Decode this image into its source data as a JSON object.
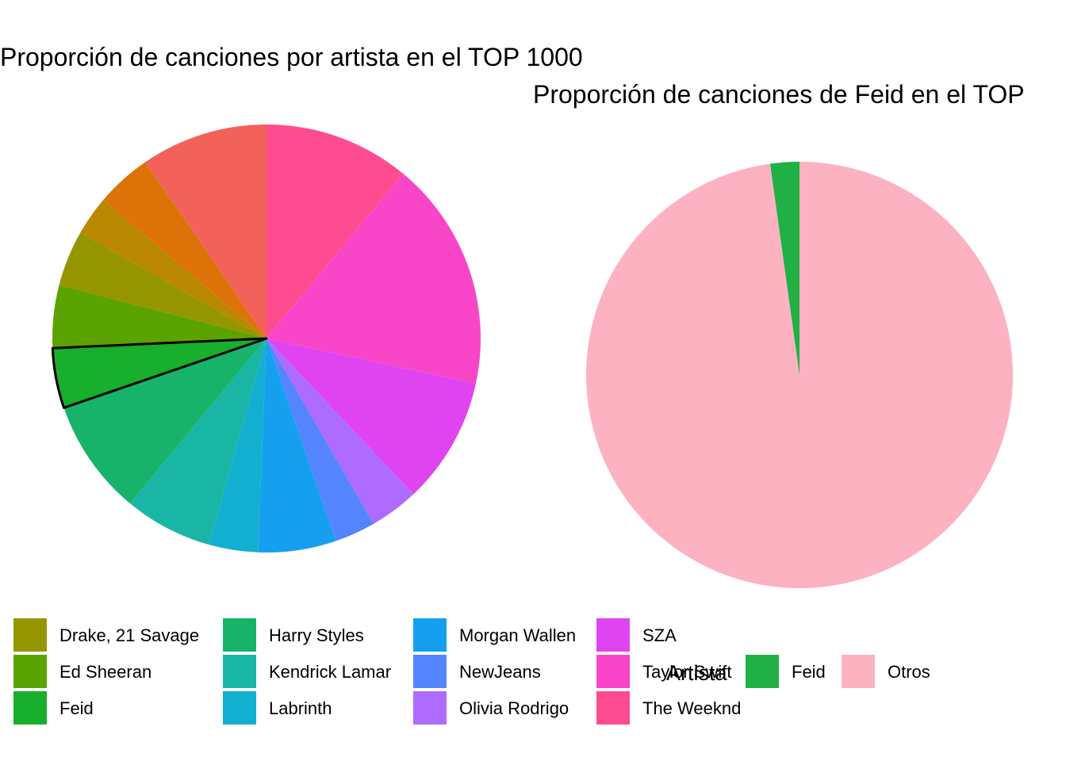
{
  "chart_data": [
    {
      "type": "pie",
      "title": "Proporción de canciones por artista en el TOP 1000",
      "legend_position": "bottom",
      "highlighted": "Feid",
      "slices": [
        {
          "label": "The Weeknd",
          "value": 10.7,
          "color": "#FF4C91"
        },
        {
          "label": "Taylor Swift",
          "value": 16.9,
          "color": "#F946C9"
        },
        {
          "label": "SZA",
          "value": 9.3,
          "color": "#E044F0"
        },
        {
          "label": "Olivia Rodrigo",
          "value": 3.6,
          "color": "#AE6BFF"
        },
        {
          "label": "NewJeans",
          "value": 3.0,
          "color": "#5584FF"
        },
        {
          "label": "Morgan Wallen",
          "value": 5.7,
          "color": "#14A0EE"
        },
        {
          "label": "Labrinth",
          "value": 3.6,
          "color": "#13AFD0"
        },
        {
          "label": "Kendrick Lamar",
          "value": 6.5,
          "color": "#19B5A5"
        },
        {
          "label": "Harry Styles",
          "value": 8.5,
          "color": "#17B36B"
        },
        {
          "label": "Feid",
          "value": 4.4,
          "color": "#17AF2C"
        },
        {
          "label": "Ed Sheeran",
          "value": 4.6,
          "color": "#5BA300"
        },
        {
          "label": "Drake, 21 Savage",
          "value": 4.1,
          "color": "#959500"
        },
        {
          "label": "",
          "value": 2.9,
          "color": "#B98700"
        },
        {
          "label": "",
          "value": 4.1,
          "color": "#DD7208"
        },
        {
          "label": "",
          "value": 9.3,
          "color": "#F2625A"
        }
      ],
      "legend": [
        {
          "label": "Drake, 21 Savage",
          "color": "#959500"
        },
        {
          "label": "Ed Sheeran",
          "color": "#5BA300"
        },
        {
          "label": "Feid",
          "color": "#17AF2C"
        },
        {
          "label": "Harry Styles",
          "color": "#17B36B"
        },
        {
          "label": "Kendrick Lamar",
          "color": "#19B5A5"
        },
        {
          "label": "Labrinth",
          "color": "#13AFD0"
        },
        {
          "label": "Morgan Wallen",
          "color": "#14A0EE"
        },
        {
          "label": "NewJeans",
          "color": "#5584FF"
        },
        {
          "label": "Olivia Rodrigo",
          "color": "#AE6BFF"
        },
        {
          "label": "SZA",
          "color": "#E044F0"
        },
        {
          "label": "Taylor Swift",
          "color": "#F946C9"
        },
        {
          "label": "The Weeknd",
          "color": "#FF4C91"
        }
      ]
    },
    {
      "type": "pie",
      "title": "Proporción de canciones de Feid en el TOP",
      "legend_title": "Artista",
      "legend_position": "bottom",
      "slices": [
        {
          "label": "Otros",
          "value": 97.8,
          "color": "#FDB2C2"
        },
        {
          "label": "Feid",
          "value": 2.2,
          "color": "#21B044"
        }
      ],
      "legend": [
        {
          "label": "Feid",
          "color": "#21B044"
        },
        {
          "label": "Otros",
          "color": "#FDB2C2"
        }
      ]
    }
  ]
}
